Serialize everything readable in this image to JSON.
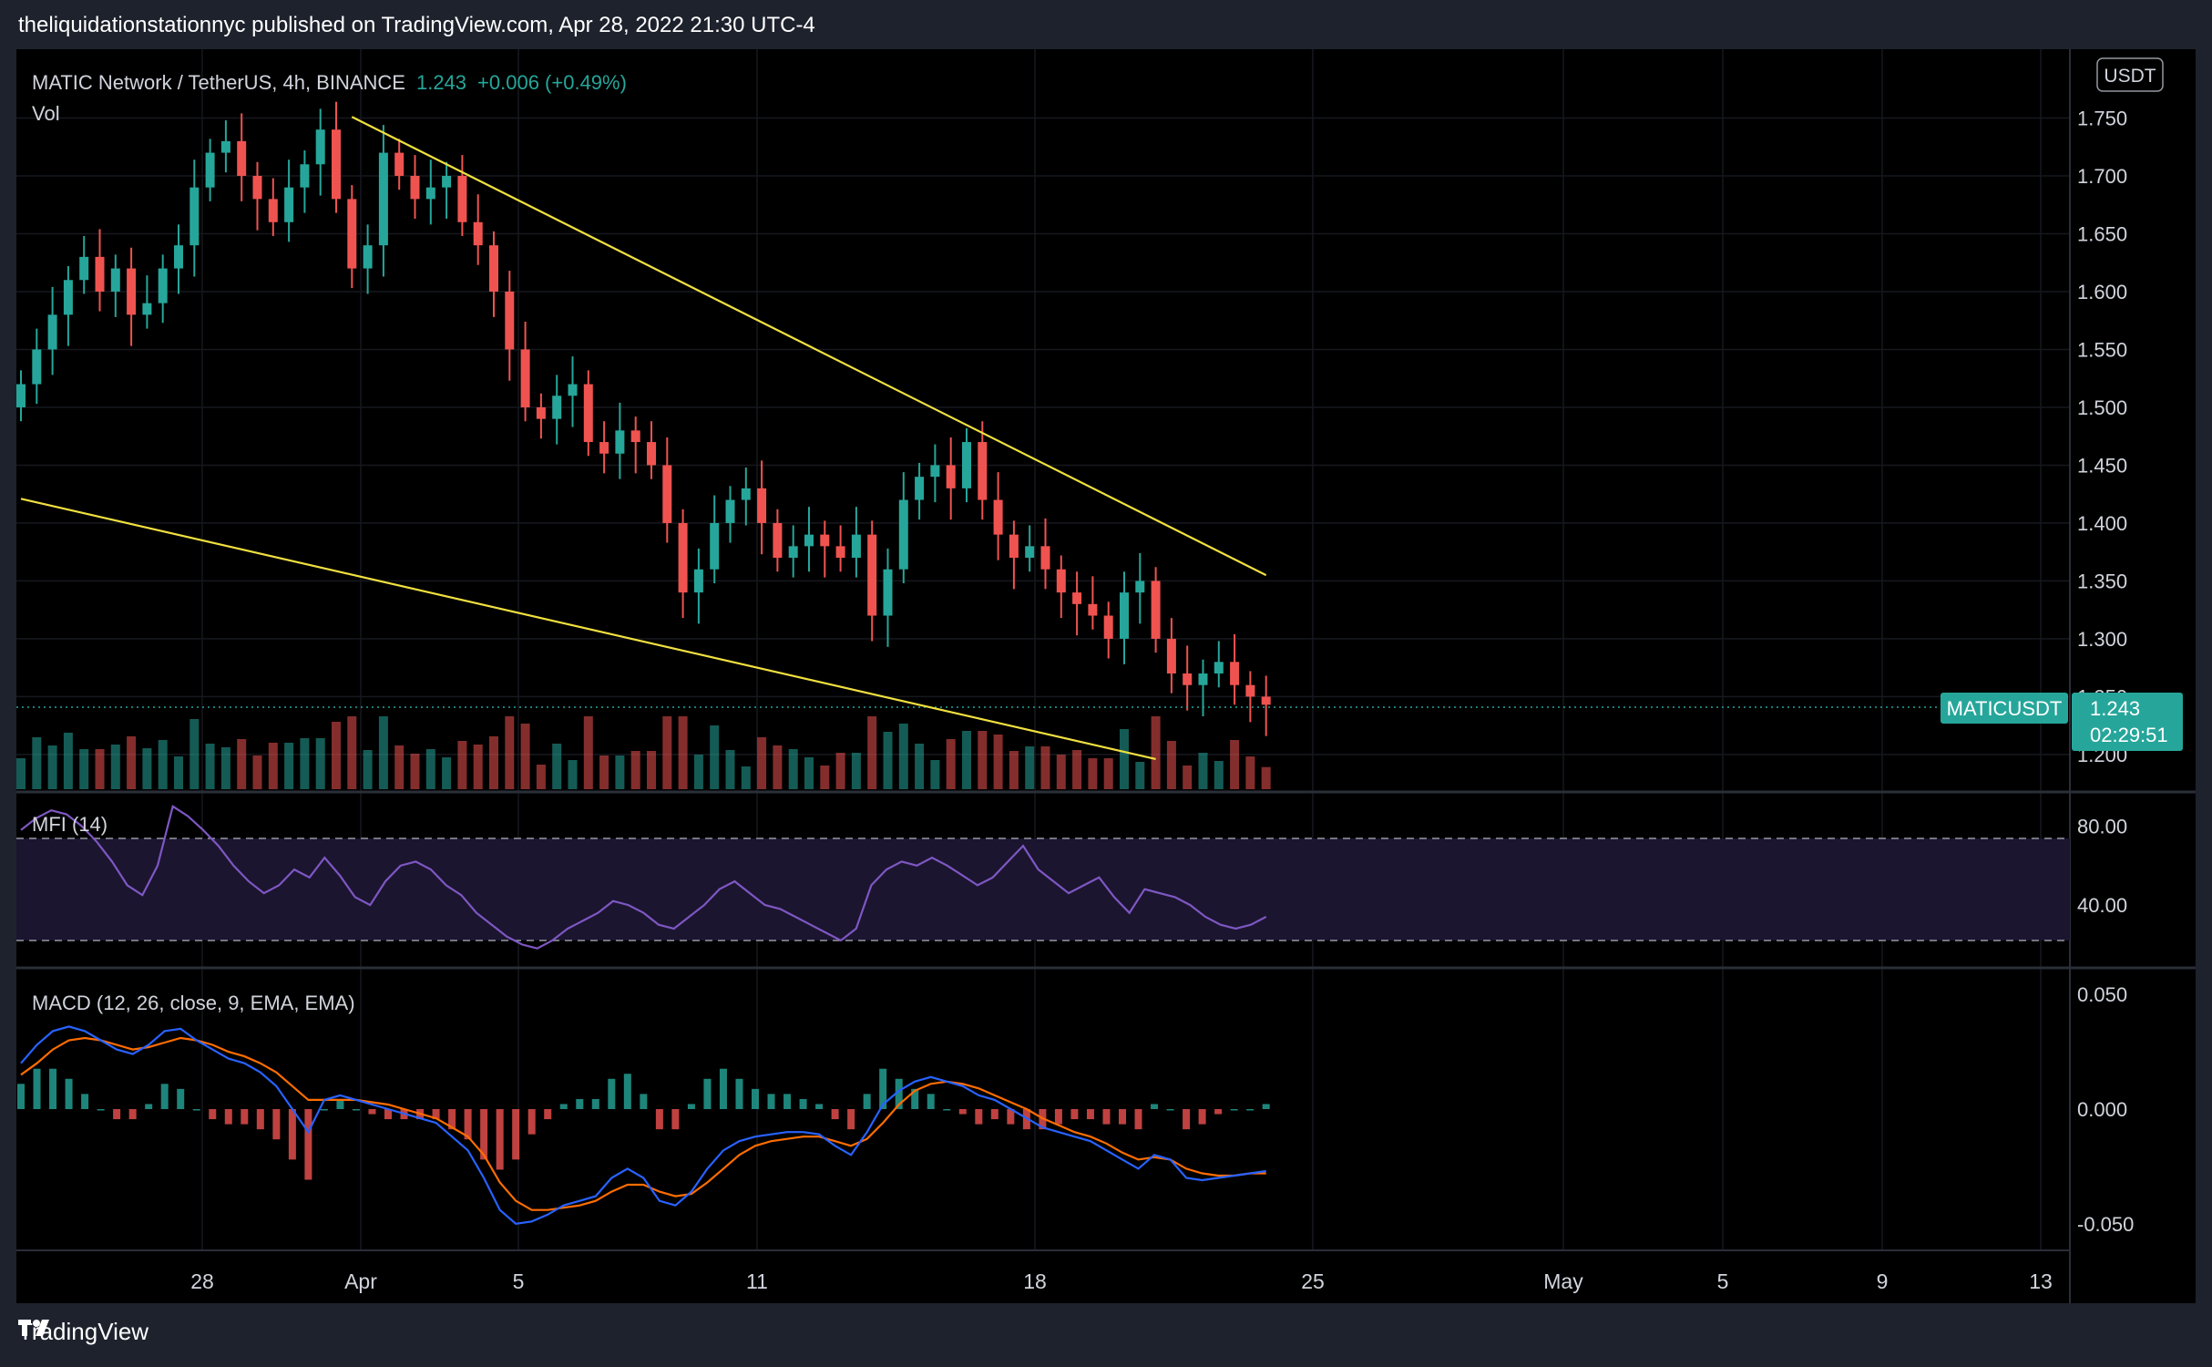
{
  "header": {
    "publisher_line": "theliquidationstationnyc published on TradingView.com, Apr 28, 2022 21:30 UTC-4"
  },
  "footer": {
    "brand": "TradingView",
    "logo_icon": "tradingview-logo-icon"
  },
  "legend": {
    "symbol": "MATIC Network / TetherUS, 4h, BINANCE",
    "last": "1.243",
    "change": "+0.006 (+0.49%)",
    "volume_label": "Vol",
    "currency_button": "USDT"
  },
  "price_tag": {
    "ticker": "MATICUSDT",
    "price": "1.243",
    "countdown": "02:29:51"
  },
  "indicators": {
    "mfi_label": "MFI (14)",
    "macd_label": "MACD (12, 26, close, 9, EMA, EMA)"
  },
  "colors": {
    "up": "#26a69a",
    "down": "#ef5350",
    "trendline": "#f0e040",
    "mfi": "#7e57c2",
    "macd": "#2962ff",
    "signal": "#ff6d00",
    "accent": "#26a69a"
  },
  "chart_data": [
    {
      "type": "candlestick",
      "title": "MATIC Network / TetherUS, 4h, BINANCE",
      "x_ticks": [
        "28",
        "Apr",
        "5",
        "11",
        "18",
        "25",
        "May",
        "5",
        "9",
        "13"
      ],
      "y_ticks": [
        "1.750",
        "1.700",
        "1.650",
        "1.600",
        "1.550",
        "1.500",
        "1.450",
        "1.400",
        "1.350",
        "1.300",
        "1.250",
        "1.200"
      ],
      "ylim": [
        1.17,
        1.8
      ],
      "grid": true,
      "last_price": 1.243,
      "close_series": [
        1.52,
        1.55,
        1.58,
        1.61,
        1.63,
        1.6,
        1.62,
        1.58,
        1.59,
        1.62,
        1.64,
        1.69,
        1.72,
        1.73,
        1.7,
        1.68,
        1.66,
        1.69,
        1.71,
        1.74,
        1.68,
        1.62,
        1.64,
        1.72,
        1.7,
        1.68,
        1.69,
        1.7,
        1.66,
        1.64,
        1.6,
        1.55,
        1.5,
        1.49,
        1.51,
        1.52,
        1.47,
        1.46,
        1.48,
        1.47,
        1.45,
        1.4,
        1.34,
        1.36,
        1.4,
        1.42,
        1.43,
        1.4,
        1.37,
        1.38,
        1.39,
        1.38,
        1.37,
        1.39,
        1.32,
        1.36,
        1.42,
        1.44,
        1.45,
        1.43,
        1.47,
        1.42,
        1.39,
        1.37,
        1.38,
        1.36,
        1.34,
        1.33,
        1.32,
        1.3,
        1.34,
        1.35,
        1.3,
        1.27,
        1.26,
        1.27,
        1.28,
        1.26,
        1.25,
        1.243
      ],
      "trendlines": [
        {
          "name": "upper",
          "from": [
            21,
            1.751
          ],
          "to": [
            79,
            1.355
          ]
        },
        {
          "name": "lower",
          "from": [
            0,
            1.421
          ],
          "to": [
            72,
            1.196
          ]
        }
      ]
    },
    {
      "type": "line",
      "title": "MFI (14)",
      "y_ticks": [
        "80.00",
        "40.00"
      ],
      "ylim": [
        10,
        95
      ],
      "bands": [
        20,
        80
      ],
      "series": [
        {
          "values": [
            78,
            84,
            88,
            86,
            80,
            72,
            62,
            50,
            45,
            60,
            90,
            85,
            78,
            70,
            60,
            52,
            46,
            50,
            58,
            54,
            64,
            55,
            44,
            40,
            52,
            60,
            62,
            58,
            50,
            45,
            36,
            30,
            24,
            20,
            18,
            22,
            28,
            32,
            36,
            42,
            40,
            36,
            30,
            28,
            34,
            40,
            48,
            52,
            46,
            40,
            38,
            34,
            30,
            26,
            22,
            28,
            50,
            58,
            62,
            60,
            64,
            60,
            55,
            50,
            54,
            62,
            70,
            58,
            52,
            46,
            50,
            54,
            44,
            36,
            48,
            46,
            44,
            40,
            34,
            30,
            28,
            30,
            34
          ]
        }
      ]
    },
    {
      "type": "line",
      "title": "MACD (12, 26, close, 9, EMA, EMA)",
      "y_ticks": [
        "0.050",
        "0.000",
        "-0.050"
      ],
      "ylim": [
        -0.06,
        0.06
      ],
      "series": [
        {
          "values": [
            0.02,
            0.028,
            0.034,
            0.036,
            0.034,
            0.03,
            0.026,
            0.024,
            0.028,
            0.034,
            0.035,
            0.03,
            0.026,
            0.022,
            0.02,
            0.016,
            0.01,
            0.0,
            -0.01,
            0.004,
            0.006,
            0.004,
            0.002,
            0.0,
            -0.002,
            -0.004,
            -0.006,
            -0.012,
            -0.018,
            -0.03,
            -0.044,
            -0.05,
            -0.049,
            -0.046,
            -0.042,
            -0.04,
            -0.038,
            -0.03,
            -0.026,
            -0.03,
            -0.04,
            -0.042,
            -0.036,
            -0.026,
            -0.018,
            -0.014,
            -0.012,
            -0.011,
            -0.01,
            -0.01,
            -0.011,
            -0.016,
            -0.02,
            -0.01,
            0.002,
            0.008,
            0.012,
            0.014,
            0.012,
            0.01,
            0.006,
            0.004,
            0.0,
            -0.004,
            -0.008,
            -0.01,
            -0.012,
            -0.014,
            -0.018,
            -0.022,
            -0.026,
            -0.02,
            -0.022,
            -0.03,
            -0.031,
            -0.03,
            -0.029,
            -0.028,
            -0.027
          ]
        },
        {
          "values": [
            0.015,
            0.02,
            0.026,
            0.03,
            0.031,
            0.03,
            0.028,
            0.026,
            0.027,
            0.029,
            0.031,
            0.03,
            0.028,
            0.025,
            0.023,
            0.02,
            0.016,
            0.01,
            0.004,
            0.004,
            0.004,
            0.004,
            0.003,
            0.002,
            0.0,
            -0.002,
            -0.004,
            -0.008,
            -0.012,
            -0.02,
            -0.032,
            -0.04,
            -0.044,
            -0.044,
            -0.043,
            -0.042,
            -0.04,
            -0.036,
            -0.033,
            -0.033,
            -0.036,
            -0.038,
            -0.037,
            -0.032,
            -0.026,
            -0.02,
            -0.016,
            -0.014,
            -0.013,
            -0.012,
            -0.012,
            -0.014,
            -0.016,
            -0.013,
            -0.006,
            0.002,
            0.008,
            0.011,
            0.012,
            0.011,
            0.009,
            0.006,
            0.003,
            0.0,
            -0.004,
            -0.007,
            -0.01,
            -0.012,
            -0.015,
            -0.019,
            -0.022,
            -0.021,
            -0.022,
            -0.026,
            -0.028,
            -0.029,
            -0.029,
            -0.028,
            -0.028
          ]
        }
      ]
    }
  ]
}
